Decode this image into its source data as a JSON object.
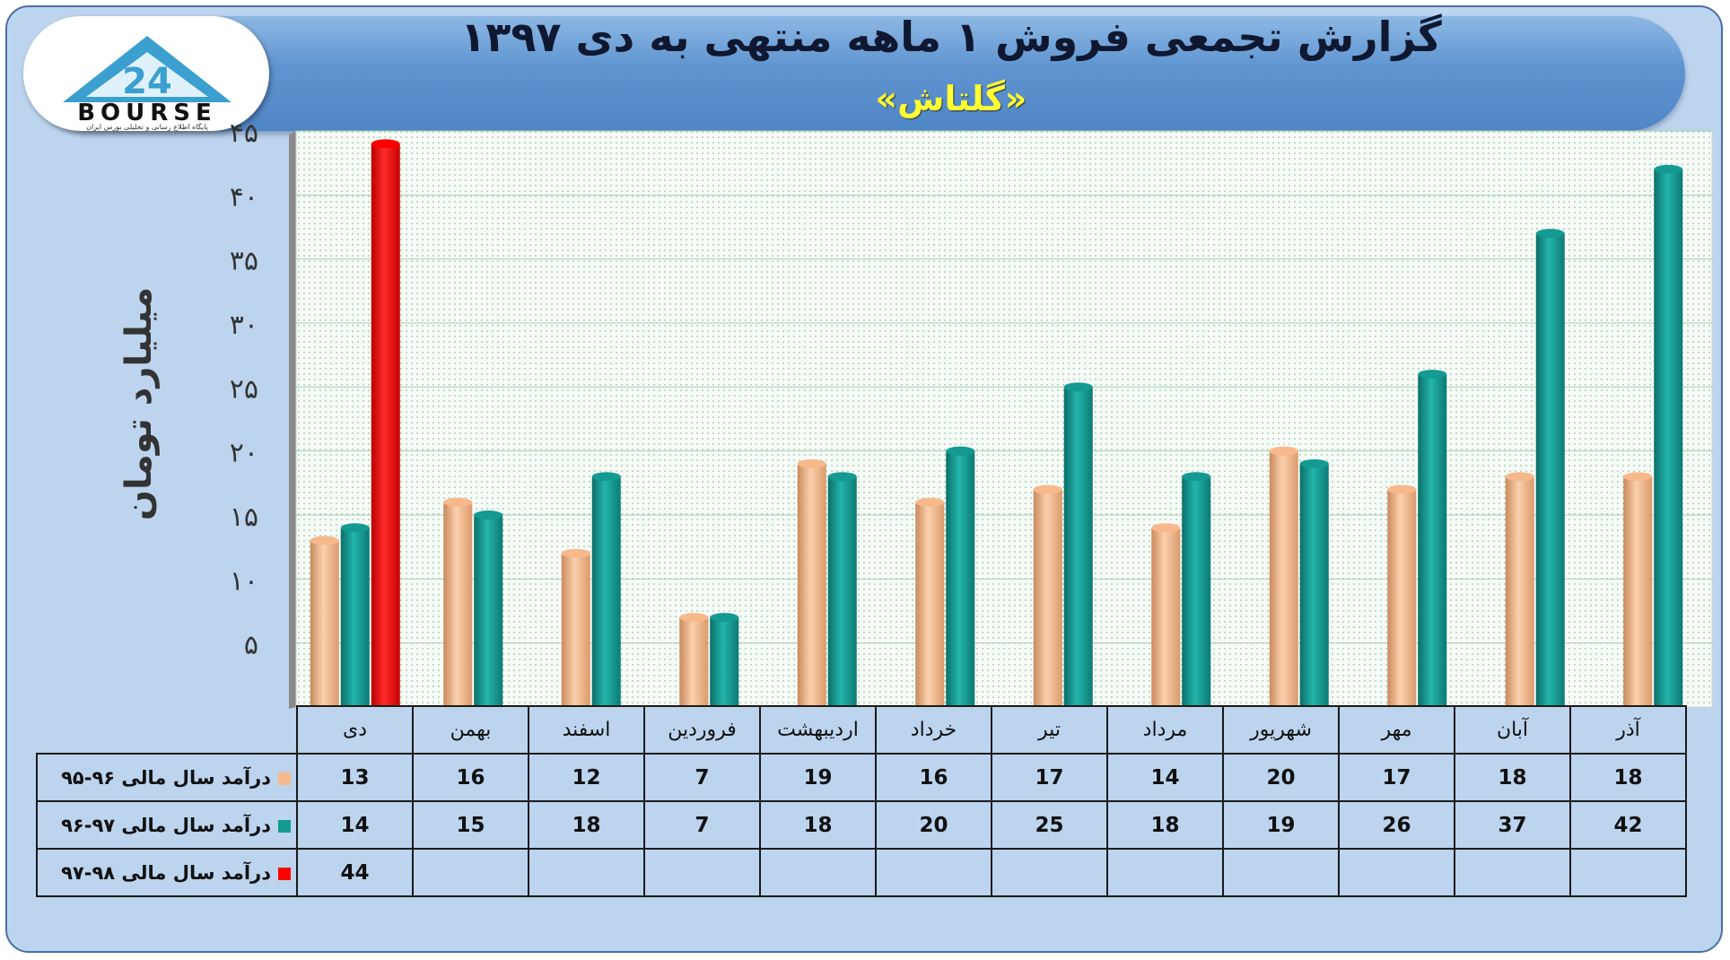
{
  "header": {
    "title": "گزارش تجمعی فروش ۱ ماهه منتهی به دی ۱۳۹۷",
    "subtitle": "«گلتاش»"
  },
  "logo": {
    "text": "BOURSE",
    "tagline": "پایگاه اطلاع رسانی و تحلیلی بورس ایران",
    "icon": "triangle-24-logo-icon"
  },
  "chart_data": {
    "type": "bar",
    "ylabel": "میلیارد تومان",
    "ylim": [
      0,
      45
    ],
    "yticks": [
      5,
      10,
      15,
      20,
      25,
      30,
      35,
      40,
      45
    ],
    "ytick_labels": [
      "۵",
      "۱۰",
      "۱۵",
      "۲۰",
      "۲۵",
      "۳۰",
      "۳۵",
      "۴۰",
      "۴۵"
    ],
    "grid": true,
    "categories": [
      "دی",
      "بهمن",
      "اسفند",
      "فروردین",
      "اردیبهشت",
      "خرداد",
      "تیر",
      "مرداد",
      "شهریور",
      "مهر",
      "آبان",
      "آذر"
    ],
    "series": [
      {
        "name": "درآمد سال مالی ۹۶-۹۵",
        "color": "#f7b98b",
        "values": [
          13,
          16,
          12,
          7,
          19,
          16,
          17,
          14,
          20,
          17,
          18,
          18
        ]
      },
      {
        "name": "درآمد سال مالی ۹۷-۹۶",
        "color": "#149a92",
        "values": [
          14,
          15,
          18,
          7,
          18,
          20,
          25,
          18,
          19,
          26,
          37,
          42
        ]
      },
      {
        "name": "درآمد سال مالی ۹۸-۹۷",
        "color": "#ff0000",
        "values": [
          44,
          null,
          null,
          null,
          null,
          null,
          null,
          null,
          null,
          null,
          null,
          null
        ]
      }
    ]
  }
}
